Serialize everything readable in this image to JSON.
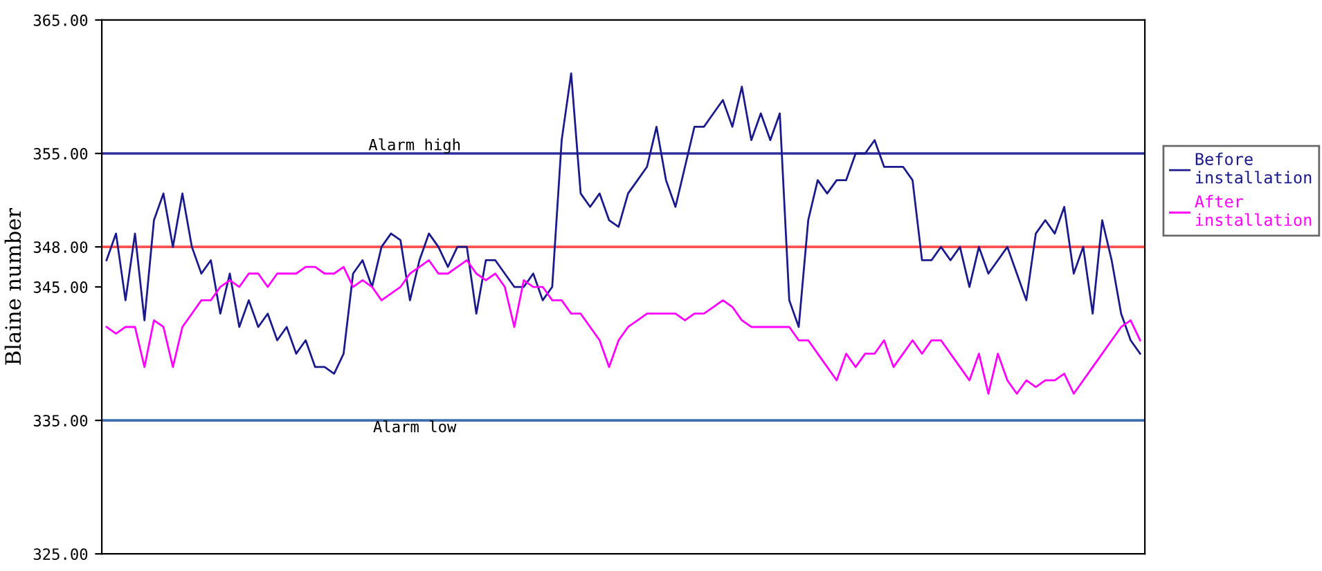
{
  "chart_data": {
    "type": "line",
    "ylabel": "Blaine number",
    "categories": [
      null,
      null,
      null,
      null,
      null,
      null,
      null,
      null,
      null,
      null,
      null,
      null,
      null,
      null,
      null,
      null,
      null,
      null,
      null,
      null,
      null,
      null,
      null,
      null,
      null,
      null,
      null,
      null,
      null,
      null,
      null,
      null,
      null,
      null,
      null,
      null,
      null,
      null,
      null,
      null,
      null,
      null,
      null,
      null,
      null,
      null,
      null,
      null,
      null,
      null,
      null,
      null,
      null,
      null,
      null,
      null,
      null,
      null,
      null,
      null,
      null,
      null,
      null,
      null,
      null,
      null,
      null,
      null,
      null,
      null,
      null,
      null,
      null,
      null,
      null,
      null,
      null,
      null,
      null,
      null,
      null,
      null,
      null,
      null,
      null,
      null,
      null,
      null,
      null,
      null,
      null,
      null,
      null,
      null,
      null,
      null,
      null,
      null,
      null,
      null,
      null,
      null,
      null,
      null,
      null,
      null,
      null,
      null,
      null,
      null
    ],
    "series": [
      {
        "name": "Before\ninstallation",
        "color": "#1a1a8c",
        "values": [
          347,
          349,
          344,
          349,
          342.5,
          350,
          352,
          348,
          352,
          348,
          346,
          347,
          343,
          346,
          342,
          344,
          342,
          343,
          341,
          342,
          340,
          341,
          339,
          339,
          338.5,
          340,
          346,
          347,
          345,
          348,
          349,
          348.5,
          344,
          347,
          349,
          348,
          346.5,
          348,
          348,
          343,
          347,
          347,
          346,
          345,
          345,
          346,
          344,
          345,
          356,
          361,
          352,
          351,
          352,
          350,
          349.5,
          352,
          353,
          354,
          357,
          353,
          351,
          354,
          357,
          357,
          358,
          359,
          357,
          360,
          356,
          358,
          356,
          358,
          344,
          342,
          350,
          353,
          352,
          353,
          353,
          355,
          355,
          356,
          354,
          354,
          354,
          353,
          347,
          347,
          348,
          347,
          348,
          345,
          348,
          346,
          347,
          348,
          346,
          344,
          349,
          350,
          349,
          351,
          346,
          348,
          343,
          350,
          347,
          343,
          341,
          340
        ]
      },
      {
        "name": "After\ninstallation",
        "color": "#ff00ff",
        "values": [
          342,
          341.5,
          342,
          342,
          339,
          342.5,
          342,
          339,
          342,
          343,
          344,
          344,
          345,
          345.5,
          345,
          346,
          346,
          345,
          346,
          346,
          346,
          346.5,
          346.5,
          346,
          346,
          346.5,
          345,
          345.5,
          345,
          344,
          344.5,
          345,
          346,
          346.5,
          347,
          346,
          346,
          346.5,
          347,
          346,
          345.5,
          346,
          345,
          342,
          345.5,
          345,
          345,
          344,
          344,
          343,
          343,
          342,
          341,
          339,
          341,
          342,
          342.5,
          343,
          343,
          343,
          343,
          342.5,
          343,
          343,
          343.5,
          344,
          343.5,
          342.5,
          342,
          342,
          342,
          342,
          342,
          341,
          341,
          340,
          339,
          338,
          340,
          339,
          340,
          340,
          341,
          339,
          340,
          341,
          340,
          341,
          341,
          340,
          339,
          338,
          340,
          337,
          340,
          338,
          337,
          338,
          337.5,
          338,
          338,
          338.5,
          337,
          338,
          339,
          340,
          341,
          342,
          342.5,
          341
        ]
      }
    ],
    "ylim": [
      325,
      365
    ],
    "yticks": [
      {
        "value": 325,
        "label": "325.00"
      },
      {
        "value": 335,
        "label": "335.00"
      },
      {
        "value": 345,
        "label": "345.00"
      },
      {
        "value": 348,
        "label": "348.00"
      },
      {
        "value": 355,
        "label": "355.00"
      },
      {
        "value": 365,
        "label": "365.00"
      }
    ],
    "ref_lines": [
      {
        "axis": "y",
        "value": 355,
        "label": "Alarm high",
        "color": "#2e2e9e"
      },
      {
        "axis": "y",
        "value": 348,
        "label": null,
        "color": "#ff5050"
      },
      {
        "axis": "y",
        "value": 335,
        "label": "Alarm low",
        "color": "#3f6fb0"
      }
    ],
    "legend": "right",
    "grid": false,
    "marker": "none",
    "line_style": "solid"
  }
}
